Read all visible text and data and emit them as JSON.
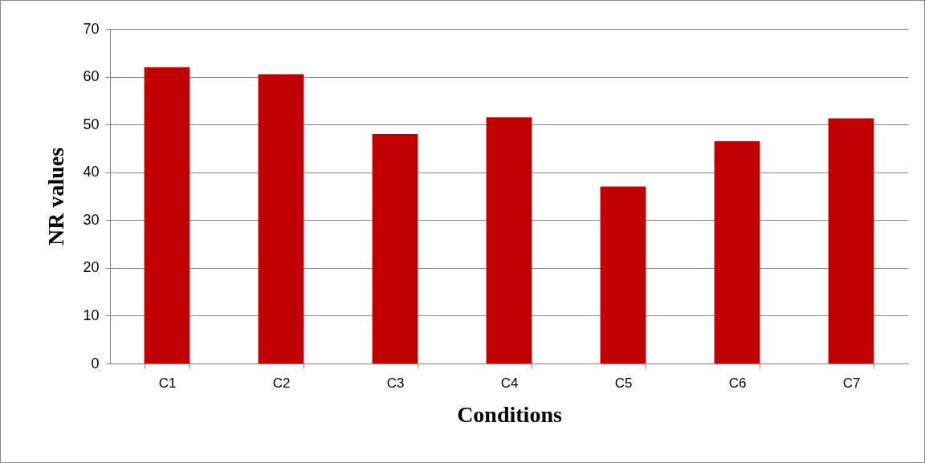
{
  "chart_data": {
    "type": "bar",
    "xlabel": "Conditions",
    "ylabel": "NR values",
    "categories": [
      "C1",
      "C2",
      "C3",
      "C4",
      "C5",
      "C6",
      "C7"
    ],
    "values": [
      62,
      60.5,
      48,
      51.5,
      37,
      46.5,
      51.3
    ],
    "color": "#c00000",
    "ylim": [
      0,
      70
    ],
    "yticks": [
      0,
      10,
      20,
      30,
      40,
      50,
      60,
      70
    ],
    "grid": "y"
  }
}
